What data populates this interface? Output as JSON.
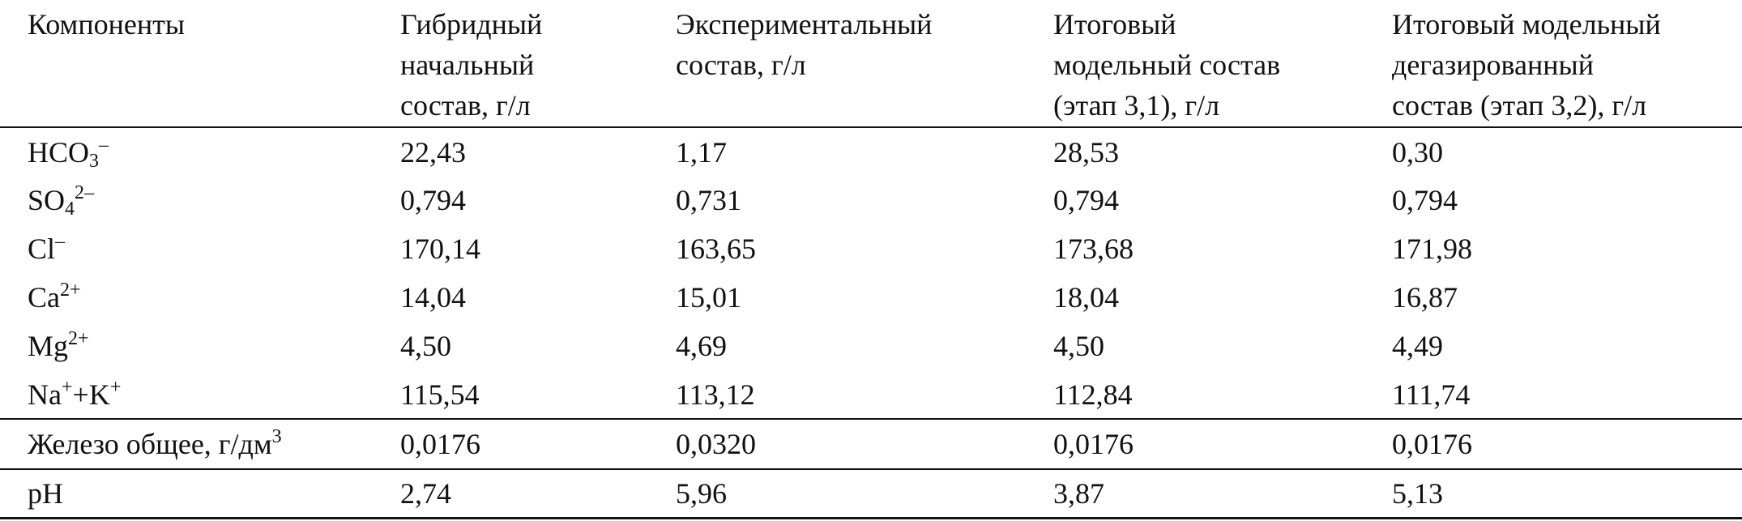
{
  "table": {
    "header": [
      [
        "Компоненты"
      ],
      [
        "Гибридный",
        "начальный",
        "состав, г/л"
      ],
      [
        "Экспериментальный",
        "состав, г/л"
      ],
      [
        "Итоговый",
        "модельный состав",
        "(этап 3,1), г/л"
      ],
      [
        "Итоговый модельный",
        "дегазированный",
        "состав (этап 3,2), г/л"
      ]
    ],
    "rows": [
      {
        "label": [
          "HCO",
          "3",
          "–"
        ],
        "values": [
          "22,43",
          "1,17",
          "28,53",
          "0,30"
        ]
      },
      {
        "label": [
          "SO",
          "4",
          "2–"
        ],
        "values": [
          "0,794",
          "0,731",
          "0,794",
          "0,794"
        ]
      },
      {
        "label": [
          "Cl",
          "–"
        ],
        "values": [
          "170,14",
          "163,65",
          "173,68",
          "171,98"
        ]
      },
      {
        "label": [
          "Ca",
          "2+"
        ],
        "values": [
          "14,04",
          "15,01",
          "18,04",
          "16,87"
        ]
      },
      {
        "label": [
          "Mg",
          "2+"
        ],
        "values": [
          "4,50",
          "4,69",
          "4,50",
          "4,49"
        ]
      },
      {
        "label": [
          "Na",
          "+",
          "+K",
          "+"
        ],
        "values": [
          "115,54",
          "113,12",
          "112,84",
          "111,74"
        ]
      },
      {
        "label": [
          "Железо общее, г/дм",
          "3"
        ],
        "values": [
          "0,0176",
          "0,0320",
          "0,0176",
          "0,0176"
        ]
      },
      {
        "label": [
          "pH"
        ],
        "values": [
          "2,74",
          "5,96",
          "3,87",
          "5,13"
        ]
      }
    ]
  }
}
